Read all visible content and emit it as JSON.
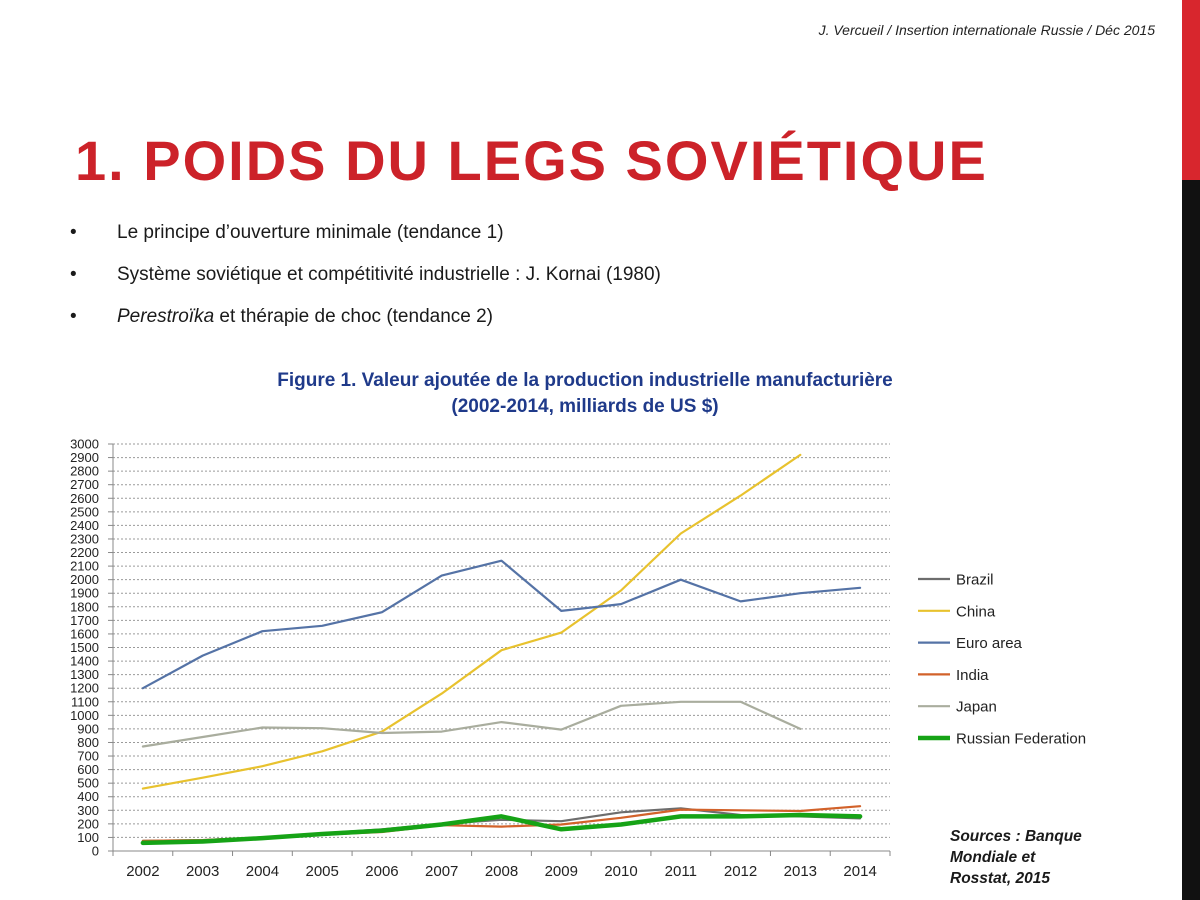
{
  "header": "J. Vercueil / Insertion internationale Russie / Déc 2015",
  "title": "1. POIDS DU LEGS SOVIÉTIQUE",
  "bullets": [
    {
      "em": "",
      "text": "Le principe d’ouverture minimale (tendance 1)"
    },
    {
      "em": "",
      "text": "Système soviétique et compétitivité industrielle : J. Kornai (1980)"
    },
    {
      "em": "Perestroïka",
      "text": " et thérapie de choc (tendance 2)"
    }
  ],
  "sources": [
    "Sources : Banque",
    "Mondiale et",
    "Rosstat, 2015"
  ],
  "colors": {
    "title": "#cc2229",
    "figure_title": "#1f3a8a",
    "Brazil": "#6d6d6d",
    "China": "#e8c22e",
    "Euro area": "#5573a6",
    "India": "#d2622a",
    "Japan": "#a9ad9e",
    "Russian Federation": "#16a316"
  },
  "chart_data": {
    "type": "line",
    "title_lines": [
      "Figure 1. Valeur ajoutée de la production industrielle manufacturière",
      "(2002-2014, milliards de US $)"
    ],
    "xlabel": "",
    "ylabel": "",
    "x": [
      "2002",
      "2003",
      "2004",
      "2005",
      "2006",
      "2007",
      "2008",
      "2009",
      "2010",
      "2011",
      "2012",
      "2013",
      "2014"
    ],
    "ylim": [
      0,
      3000
    ],
    "ytick_step": 100,
    "grid": true,
    "legend_position": "right",
    "series": [
      {
        "name": "Brazil",
        "values": [
          75,
          80,
          100,
          130,
          160,
          200,
          230,
          220,
          285,
          315,
          265,
          255,
          240
        ]
      },
      {
        "name": "China",
        "values": [
          460,
          540,
          625,
          735,
          880,
          1160,
          1480,
          1610,
          1920,
          2340,
          2620,
          2920,
          null
        ]
      },
      {
        "name": "Euro area",
        "values": [
          1200,
          1440,
          1620,
          1660,
          1760,
          2030,
          2140,
          1770,
          1820,
          2000,
          1840,
          1900,
          1940
        ]
      },
      {
        "name": "India",
        "values": [
          75,
          80,
          100,
          120,
          140,
          190,
          180,
          195,
          245,
          305,
          300,
          295,
          330
        ]
      },
      {
        "name": "Japan",
        "values": [
          770,
          840,
          910,
          905,
          870,
          880,
          950,
          895,
          1070,
          1100,
          1100,
          900,
          null
        ]
      },
      {
        "name": "Russian Federation",
        "values": [
          60,
          70,
          95,
          125,
          150,
          195,
          255,
          160,
          195,
          255,
          255,
          265,
          255
        ]
      }
    ]
  }
}
